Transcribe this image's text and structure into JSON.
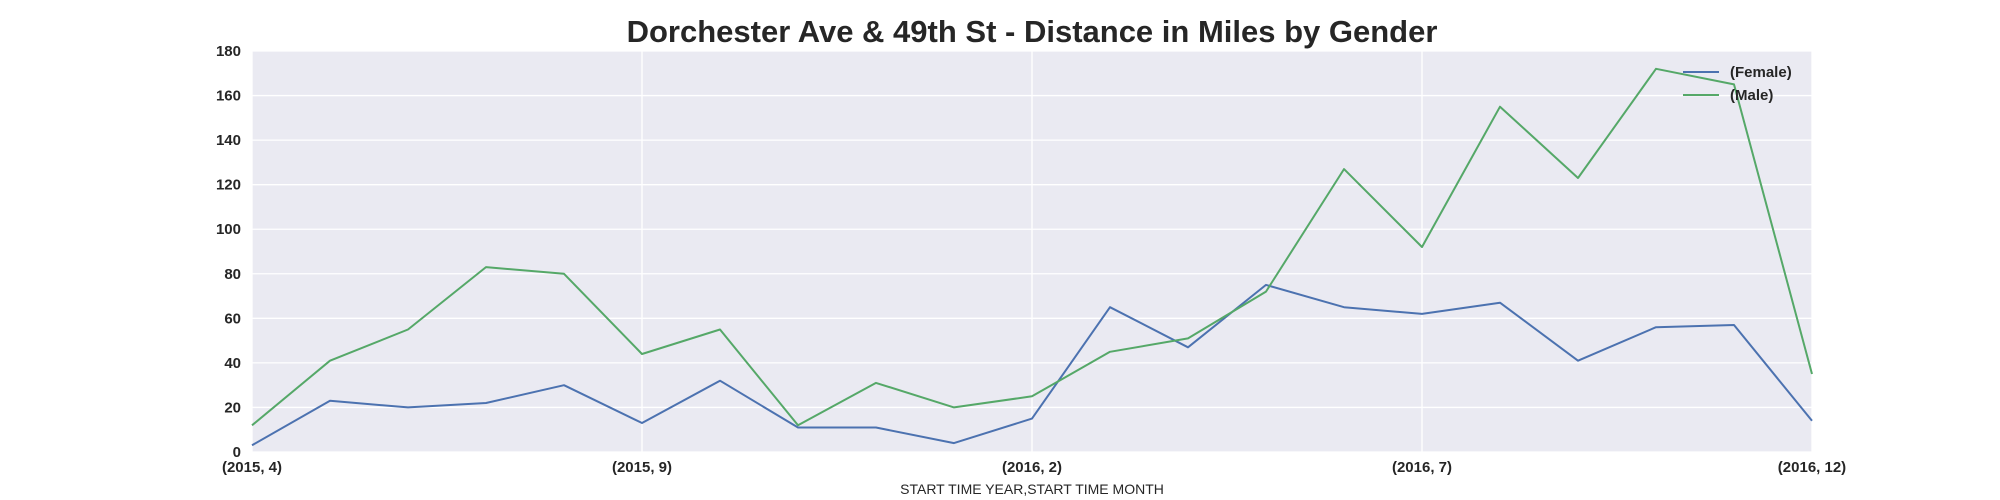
{
  "chart_data": {
    "type": "line",
    "title": "Dorchester Ave & 49th St - Distance in Miles by Gender",
    "xlabel": "START TIME YEAR,START TIME MONTH",
    "ylabel": "",
    "x": [
      "(2015, 4)",
      "(2015, 5)",
      "(2015, 6)",
      "(2015, 7)",
      "(2015, 8)",
      "(2015, 9)",
      "(2015, 10)",
      "(2015, 11)",
      "(2015, 12)",
      "(2016, 1)",
      "(2016, 2)",
      "(2016, 3)",
      "(2016, 4)",
      "(2016, 5)",
      "(2016, 6)",
      "(2016, 7)",
      "(2016, 8)",
      "(2016, 9)",
      "(2016, 10)",
      "(2016, 11)",
      "(2016, 12)"
    ],
    "x_ticks": [
      "(2015, 4)",
      "(2015, 9)",
      "(2016, 2)",
      "(2016, 7)",
      "(2016, 12)"
    ],
    "x_tick_indices": [
      0,
      5,
      10,
      15,
      20
    ],
    "ylim": [
      0,
      180
    ],
    "y_ticks": [
      0,
      20,
      40,
      60,
      80,
      100,
      120,
      140,
      160,
      180
    ],
    "grid": true,
    "legend_position": "top-right",
    "series": [
      {
        "name": "(Female)",
        "color": "#4c72b0",
        "values": [
          3,
          23,
          20,
          22,
          30,
          13,
          32,
          11,
          11,
          4,
          15,
          65,
          47,
          75,
          65,
          62,
          67,
          41,
          56,
          57,
          14
        ]
      },
      {
        "name": "(Male)",
        "color": "#55a868",
        "values": [
          12,
          41,
          55,
          83,
          80,
          44,
          55,
          12,
          31,
          20,
          25,
          45,
          51,
          72,
          127,
          92,
          155,
          123,
          172,
          165,
          35
        ]
      }
    ]
  }
}
